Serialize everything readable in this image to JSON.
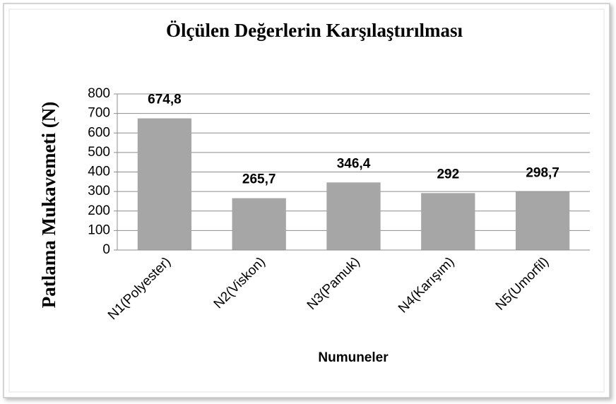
{
  "chart_data": {
    "type": "bar",
    "title": "Ölçülen Değerlerin Karşılaştırılması",
    "ylabel": "Patlama Mukavemeti (N)",
    "xlabel": "Numuneler",
    "categories": [
      "N1(Polyester)",
      "N2(Viskon)",
      "N3(Pamuk)",
      "N4(Karışım)",
      "N5(Umorfil)"
    ],
    "values": [
      674.8,
      265.7,
      346.4,
      292,
      298.7
    ],
    "value_labels": [
      "674,8",
      "265,7",
      "346,4",
      "292",
      "298,7"
    ],
    "color": "#a6a6a6",
    "ylim": [
      0,
      800
    ],
    "yticks": [
      0,
      100,
      200,
      300,
      400,
      500,
      600,
      700,
      800
    ],
    "grid": true
  }
}
